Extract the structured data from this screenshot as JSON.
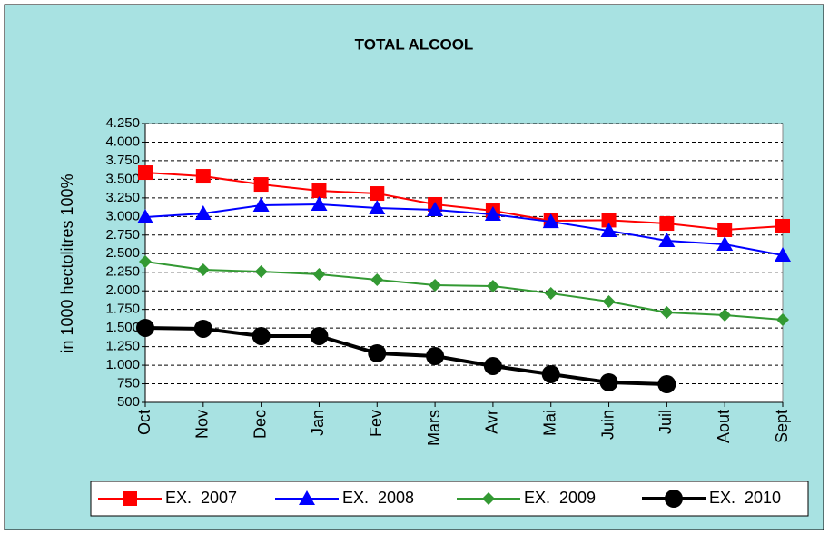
{
  "chart_data": {
    "type": "line",
    "title": "TOTAL ALCOOL",
    "y_label": "in 1000 hectolitres 100%",
    "categories": [
      "Oct",
      "Nov",
      "Dec",
      "Jan",
      "Fev",
      "Mars",
      "Avr",
      "Mai",
      "Juin",
      "Juil",
      "Aout",
      "Sept"
    ],
    "series": [
      {
        "name": "EX.  2007",
        "color": "#ff0000",
        "marker": "square",
        "values": [
          3590,
          3541,
          3431,
          3346,
          3309,
          3163,
          3077,
          2943,
          2950,
          2906,
          2821,
          2870
        ]
      },
      {
        "name": "EX.  2008",
        "color": "#0000ff",
        "marker": "triangle",
        "values": [
          2992,
          3041,
          3150,
          3163,
          3114,
          3090,
          3028,
          2930,
          2808,
          2674,
          2625,
          2479
        ]
      },
      {
        "name": "EX.  2009",
        "color": "#339933",
        "marker": "diamond",
        "values": [
          2393,
          2283,
          2259,
          2222,
          2149,
          2076,
          2063,
          1966,
          1856,
          1709,
          1673,
          1612
        ]
      },
      {
        "name": "EX.  2010",
        "color": "#000000",
        "marker": "circle",
        "values": [
          1502,
          1490,
          1392,
          1392,
          1160,
          1123,
          989,
          879,
          769,
          744,
          null,
          null
        ]
      }
    ],
    "ylim": [
      500,
      4250
    ],
    "yticks": [
      {
        "value": 500,
        "label": "500"
      },
      {
        "value": 750,
        "label": "750"
      },
      {
        "value": 1000,
        "label": "1.000"
      },
      {
        "value": 1250,
        "label": "1.250"
      },
      {
        "value": 1500,
        "label": "1.500"
      },
      {
        "value": 1750,
        "label": "1.750"
      },
      {
        "value": 2000,
        "label": "2.000"
      },
      {
        "value": 2250,
        "label": "2.250"
      },
      {
        "value": 2500,
        "label": "2.500"
      },
      {
        "value": 2750,
        "label": "2.750"
      },
      {
        "value": 3000,
        "label": "3.000"
      },
      {
        "value": 3250,
        "label": "3.250"
      },
      {
        "value": 3500,
        "label": "3.500"
      },
      {
        "value": 3750,
        "label": "3.750"
      },
      {
        "value": 4000,
        "label": "4.000"
      },
      {
        "value": 4250,
        "label": "4.250"
      }
    ],
    "grid": true,
    "legend": "bottom"
  }
}
